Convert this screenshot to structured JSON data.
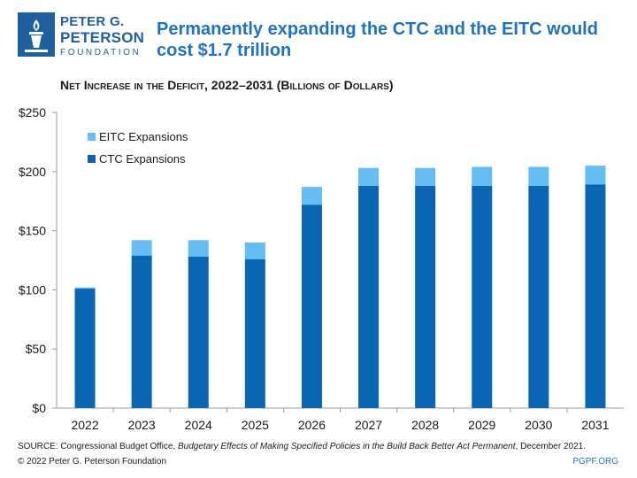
{
  "brand": {
    "line1": "PETER G.",
    "line2": "PETERSON",
    "line3": "FOUNDATION",
    "logo_icon": "torch-icon",
    "color": "#1f5f9e"
  },
  "headline": "Permanently expanding the CTC and the EITC would cost $1.7 trillion",
  "chart_title": "Net Increase in the Deficit, 2022–2031 (Billions of Dollars)",
  "chart_data": {
    "type": "bar",
    "stacked": true,
    "title": "Net Increase in the Deficit, 2022–2031 (Billions of Dollars)",
    "xlabel": "",
    "ylabel": "",
    "ylim": [
      0,
      250
    ],
    "yticks": [
      0,
      50,
      100,
      150,
      200,
      250
    ],
    "ytick_labels": [
      "$0",
      "$50",
      "$100",
      "$150",
      "$200",
      "$250"
    ],
    "categories": [
      "2022",
      "2023",
      "2024",
      "2025",
      "2026",
      "2027",
      "2028",
      "2029",
      "2030",
      "2031"
    ],
    "series": [
      {
        "name": "CTC Expansions",
        "color": "#0a66b2",
        "values": [
          101,
          129,
          128,
          126,
          172,
          188,
          188,
          188,
          188,
          189
        ]
      },
      {
        "name": "EITC Expansions",
        "color": "#66bdf2",
        "values": [
          1,
          13,
          14,
          14,
          15,
          15,
          15,
          16,
          16,
          16
        ]
      }
    ],
    "legend": [
      "EITC Expansions",
      "CTC Expansions"
    ],
    "legend_position": "top-left",
    "grid": false
  },
  "footer": {
    "source_prefix": "SOURCE: Congressional Budget Office, ",
    "source_title": "Budgetary Effects of Making Specified Policies in the Build Back Better Act Permanent",
    "source_suffix": ", December 2021.",
    "copyright": "© 2022 Peter G. Peterson Foundation",
    "site": "PGPF.ORG"
  }
}
